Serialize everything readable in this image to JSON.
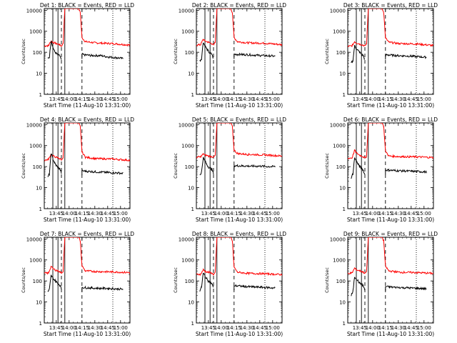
{
  "figure": {
    "xlabel": "Start Time (11-Aug-10 13:31:00)",
    "ylabel": "Counts/sec",
    "xticks": [
      "13:45",
      "14:00",
      "14:15",
      "14:30",
      "14:45",
      "15:00"
    ],
    "yticks": [
      "1",
      "10",
      "100",
      "1000",
      "10000"
    ],
    "panel_titles": [
      "Det 1: BLACK = Events, RED = LLD",
      "Det 2: BLACK = Events, RED = LLD",
      "Det 3: BLACK = Events, RED = LLD",
      "Det 4: BLACK = Events, RED = LLD",
      "Det 5: BLACK = Events, RED = LLD",
      "Det 6: BLACK = Events, RED = LLD",
      "Det 7: BLACK = Events, RED = LLD",
      "Det 8: BLACK = Events, RED = LLD",
      "Det 9: BLACK = Events, RED = LLD"
    ],
    "colors": {
      "events": "#000000",
      "lld": "#ff0000",
      "markers": "#000000"
    }
  },
  "chart_data": {
    "type": "line",
    "scale": "log-y",
    "layout": "3x3 grid",
    "xlim_minutes_after_13_31": [
      0,
      100
    ],
    "ylim": [
      1,
      12000
    ],
    "x_unit": "minutes after 13:31:00",
    "vertical_markers": {
      "solid": [
        10,
        16,
        24
      ],
      "dashed": [
        20,
        44
      ],
      "dotted": [
        80
      ]
    },
    "panels": [
      {
        "det": 1,
        "events": {
          "x": [
            4,
            6,
            8,
            10,
            12,
            14,
            16,
            18,
            20
          ],
          "y": [
            50,
            60,
            380,
            180,
            110,
            90,
            70,
            70,
            40
          ],
          "x2": [
            44,
            48,
            55,
            65,
            75,
            85,
            92
          ],
          "y2": [
            80,
            75,
            70,
            70,
            60,
            55,
            50
          ]
        },
        "lld": {
          "x": [
            0,
            5,
            8,
            10,
            14,
            18,
            20,
            22,
            24,
            26,
            40,
            42,
            44,
            48,
            60,
            80,
            100
          ],
          "y": [
            200,
            210,
            350,
            300,
            260,
            230,
            200,
            260,
            12000,
            12000,
            12000,
            8000,
            500,
            320,
            280,
            260,
            220
          ]
        }
      },
      {
        "det": 2,
        "events": {
          "x": [
            4,
            6,
            8,
            10,
            12,
            14,
            16,
            18,
            20
          ],
          "y": [
            40,
            50,
            300,
            200,
            150,
            110,
            90,
            80,
            50
          ],
          "x2": [
            44,
            48,
            55,
            65,
            75,
            85,
            92
          ],
          "y2": [
            80,
            80,
            78,
            75,
            70,
            68,
            65
          ]
        },
        "lld": {
          "x": [
            0,
            5,
            8,
            10,
            14,
            18,
            20,
            22,
            24,
            26,
            40,
            42,
            44,
            48,
            60,
            80,
            100
          ],
          "y": [
            220,
            230,
            420,
            350,
            300,
            260,
            220,
            300,
            12000,
            12000,
            12000,
            8000,
            500,
            320,
            280,
            270,
            230
          ]
        }
      },
      {
        "det": 3,
        "events": {
          "x": [
            4,
            6,
            8,
            10,
            12,
            14,
            16,
            18,
            20
          ],
          "y": [
            30,
            40,
            200,
            150,
            120,
            100,
            80,
            70,
            45
          ],
          "x2": [
            44,
            48,
            55,
            65,
            75,
            85,
            92
          ],
          "y2": [
            75,
            75,
            70,
            68,
            65,
            60,
            58
          ]
        },
        "lld": {
          "x": [
            0,
            5,
            8,
            10,
            14,
            18,
            20,
            22,
            24,
            26,
            40,
            42,
            44,
            48,
            60,
            80,
            100
          ],
          "y": [
            190,
            200,
            320,
            280,
            250,
            220,
            200,
            260,
            12000,
            12000,
            12000,
            8000,
            480,
            300,
            260,
            250,
            210
          ]
        }
      },
      {
        "det": 4,
        "events": {
          "x": [
            4,
            6,
            8,
            10,
            12,
            14,
            16,
            18,
            20
          ],
          "y": [
            30,
            45,
            420,
            240,
            150,
            110,
            90,
            80,
            50
          ],
          "x2": [
            44,
            48,
            55,
            65,
            75,
            85,
            92
          ],
          "y2": [
            65,
            60,
            58,
            55,
            52,
            50,
            48
          ]
        },
        "lld": {
          "x": [
            0,
            5,
            8,
            10,
            14,
            18,
            20,
            22,
            24,
            26,
            40,
            42,
            44,
            48,
            60,
            80,
            100
          ],
          "y": [
            200,
            220,
            400,
            320,
            280,
            240,
            210,
            280,
            12000,
            12000,
            12000,
            8000,
            500,
            280,
            240,
            230,
            200
          ]
        }
      },
      {
        "det": 5,
        "events": {
          "x": [
            4,
            6,
            8,
            10,
            12,
            14,
            16,
            18,
            20
          ],
          "y": [
            40,
            55,
            260,
            180,
            130,
            100,
            85,
            75,
            45
          ],
          "x2": [
            44,
            48,
            55,
            65,
            75,
            85,
            92
          ],
          "y2": [
            110,
            110,
            108,
            105,
            105,
            100,
            100
          ]
        },
        "lld": {
          "x": [
            0,
            5,
            8,
            10,
            14,
            18,
            20,
            22,
            24,
            26,
            40,
            42,
            44,
            48,
            60,
            80,
            100
          ],
          "y": [
            280,
            290,
            400,
            360,
            320,
            300,
            280,
            330,
            12000,
            12000,
            12000,
            8000,
            600,
            420,
            380,
            360,
            320
          ]
        }
      },
      {
        "det": 6,
        "events": {
          "x": [
            4,
            6,
            8,
            10,
            12,
            14,
            16,
            18,
            20
          ],
          "y": [
            30,
            45,
            260,
            180,
            130,
            100,
            85,
            70,
            40
          ],
          "x2": [
            44,
            48,
            55,
            65,
            75,
            85,
            92
          ],
          "y2": [
            70,
            68,
            65,
            62,
            60,
            58,
            55
          ]
        },
        "lld": {
          "x": [
            0,
            5,
            8,
            10,
            14,
            18,
            20,
            22,
            24,
            26,
            40,
            42,
            44,
            48,
            60,
            80,
            100
          ],
          "y": [
            250,
            260,
            600,
            450,
            350,
            300,
            260,
            310,
            12000,
            12000,
            12000,
            8000,
            550,
            320,
            300,
            290,
            270
          ]
        }
      },
      {
        "det": 7,
        "events": {
          "x": [
            4,
            6,
            8,
            10,
            12,
            14,
            16,
            18,
            20
          ],
          "y": [
            30,
            40,
            180,
            140,
            110,
            90,
            75,
            65,
            40
          ],
          "x2": [
            44,
            48,
            55,
            65,
            75,
            85,
            92
          ],
          "y2": [
            50,
            48,
            46,
            45,
            44,
            42,
            40
          ]
        },
        "lld": {
          "x": [
            0,
            5,
            8,
            10,
            14,
            18,
            20,
            22,
            24,
            26,
            40,
            42,
            44,
            48,
            60,
            80,
            100
          ],
          "y": [
            230,
            240,
            500,
            380,
            320,
            280,
            240,
            290,
            12000,
            12000,
            12000,
            8000,
            520,
            300,
            280,
            270,
            250
          ]
        }
      },
      {
        "det": 8,
        "events": {
          "x": [
            4,
            6,
            8,
            10,
            12,
            14,
            16,
            18,
            20
          ],
          "y": [
            35,
            50,
            230,
            170,
            130,
            100,
            85,
            75,
            45
          ],
          "x2": [
            44,
            48,
            55,
            65,
            75,
            85,
            92
          ],
          "y2": [
            60,
            58,
            55,
            52,
            50,
            48,
            46
          ]
        },
        "lld": {
          "x": [
            0,
            5,
            8,
            10,
            14,
            18,
            20,
            22,
            24,
            26,
            40,
            42,
            44,
            48,
            60,
            80,
            100
          ],
          "y": [
            200,
            210,
            340,
            290,
            260,
            230,
            200,
            250,
            12000,
            12000,
            12000,
            8000,
            450,
            260,
            230,
            220,
            200
          ]
        }
      },
      {
        "det": 9,
        "events": {
          "x": [
            4,
            6,
            8,
            10,
            12,
            14,
            16,
            18,
            20
          ],
          "y": [
            20,
            30,
            160,
            130,
            100,
            80,
            70,
            60,
            35
          ],
          "x2": [
            44,
            48,
            55,
            65,
            75,
            85,
            92
          ],
          "y2": [
            55,
            52,
            50,
            48,
            46,
            44,
            42
          ]
        },
        "lld": {
          "x": [
            0,
            5,
            8,
            10,
            14,
            18,
            20,
            22,
            24,
            26,
            40,
            42,
            44,
            48,
            60,
            80,
            100
          ],
          "y": [
            230,
            240,
            400,
            340,
            300,
            270,
            230,
            280,
            12000,
            12000,
            12000,
            8000,
            500,
            300,
            260,
            250,
            230
          ]
        }
      }
    ]
  }
}
